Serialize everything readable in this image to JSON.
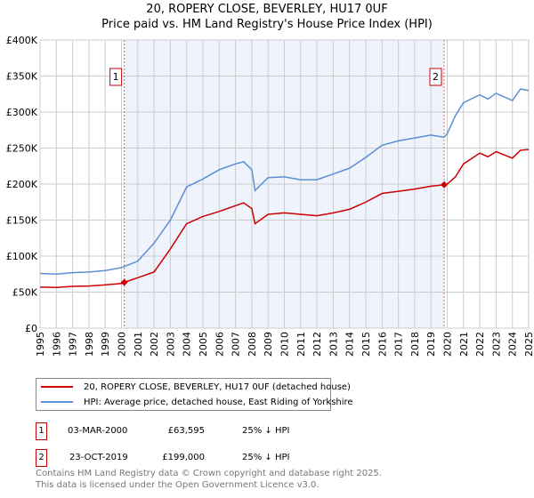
{
  "chart_data": {
    "type": "line",
    "title": "20, ROPERY CLOSE, BEVERLEY, HU17 0UF",
    "subtitle": "Price paid vs. HM Land Registry's House Price Index (HPI)",
    "xlabel": "",
    "ylabel": "",
    "xlim": [
      1995,
      2025
    ],
    "ylim": [
      0,
      400000
    ],
    "grid": true,
    "y_ticks": [
      "£0",
      "£50K",
      "£100K",
      "£150K",
      "£200K",
      "£250K",
      "£300K",
      "£350K",
      "£400K"
    ],
    "x_ticks": [
      "1995",
      "1996",
      "1997",
      "1998",
      "1999",
      "2000",
      "2001",
      "2002",
      "2003",
      "2004",
      "2005",
      "2006",
      "2007",
      "2008",
      "2009",
      "2010",
      "2011",
      "2012",
      "2013",
      "2014",
      "2015",
      "2016",
      "2017",
      "2018",
      "2019",
      "2020",
      "2021",
      "2022",
      "2023",
      "2024",
      "2025"
    ],
    "shaded_region": [
      2000.17,
      2019.81
    ],
    "series": [
      {
        "name": "20, ROPERY CLOSE, BEVERLEY, HU17 0UF (detached house)",
        "color": "#cc0000",
        "x": [
          1995,
          1996,
          1997,
          1998,
          1999,
          2000,
          2000.17,
          2001,
          2002,
          2003,
          2004,
          2005,
          2006,
          2007,
          2007.5,
          2008,
          2008.2,
          2009,
          2010,
          2011,
          2012,
          2013,
          2014,
          2015,
          2016,
          2017,
          2018,
          2019,
          2019.81,
          2020,
          2020.5,
          2021,
          2022,
          2022.5,
          2023,
          2024,
          2024.5,
          2025
        ],
        "y": [
          57000,
          56500,
          58000,
          58500,
          60000,
          62000,
          63595,
          70000,
          78000,
          110000,
          145000,
          155000,
          162000,
          170000,
          174000,
          166000,
          145000,
          158000,
          160000,
          158000,
          156000,
          160000,
          165000,
          175000,
          187000,
          190000,
          193000,
          197000,
          199000,
          200000,
          210000,
          228000,
          243000,
          238000,
          245000,
          236000,
          247000,
          248000
        ]
      },
      {
        "name": "HPI: Average price, detached house, East Riding of Yorkshire",
        "color": "#5b8fd4",
        "x": [
          1995,
          1996,
          1997,
          1998,
          1999,
          2000,
          2001,
          2002,
          2003,
          2004,
          2005,
          2006,
          2007,
          2007.5,
          2008,
          2008.2,
          2009,
          2010,
          2011,
          2012,
          2013,
          2014,
          2015,
          2016,
          2017,
          2018,
          2019,
          2019.81,
          2020,
          2020.5,
          2021,
          2022,
          2022.5,
          2023,
          2024,
          2024.5,
          2025
        ],
        "y": [
          76000,
          75000,
          77000,
          78000,
          80000,
          84000,
          93000,
          118000,
          150000,
          196000,
          207000,
          220000,
          228000,
          231000,
          220000,
          191000,
          209000,
          210000,
          206000,
          206000,
          214000,
          222000,
          237000,
          254000,
          260000,
          264000,
          268000,
          265000,
          270000,
          295000,
          313000,
          324000,
          318000,
          326000,
          316000,
          332000,
          330000
        ]
      }
    ]
  },
  "annotations": [
    {
      "label": "1",
      "x": 2000.17,
      "date": "03-MAR-2000",
      "price": "£63,595",
      "value": 63595,
      "hpi": "25% ↓ HPI"
    },
    {
      "label": "2",
      "x": 2019.81,
      "date": "23-OCT-2019",
      "price": "£199,000",
      "value": 199000,
      "hpi": "25% ↓ HPI"
    }
  ],
  "legend": {
    "red": "20, ROPERY CLOSE, BEVERLEY, HU17 0UF (detached house)",
    "blue": "HPI: Average price, detached house, East Riding of Yorkshire"
  },
  "footer": {
    "line1": "Contains HM Land Registry data © Crown copyright and database right 2025.",
    "line2": "This data is licensed under the Open Government Licence v3.0."
  }
}
